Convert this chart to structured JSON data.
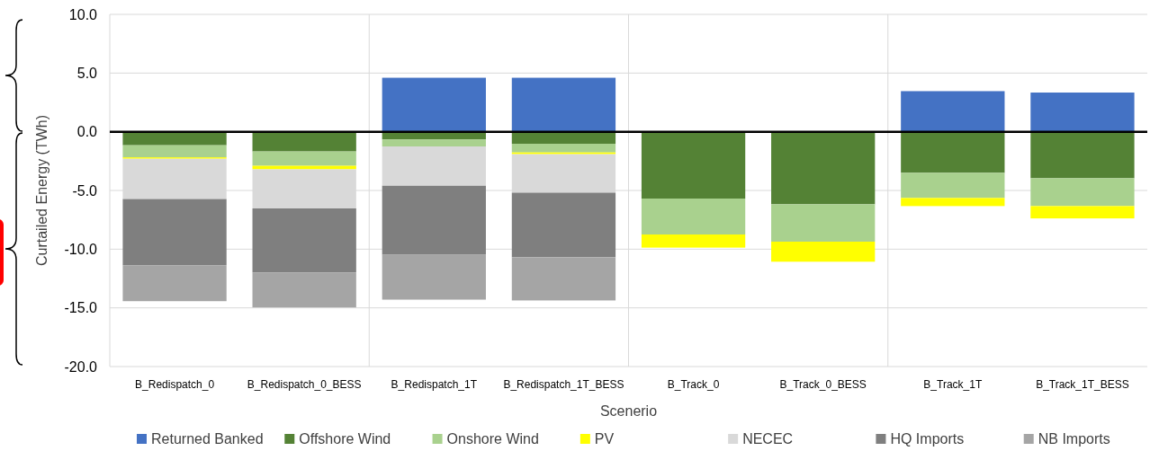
{
  "chart_data": {
    "type": "bar",
    "stacked": true,
    "xlabel": "Scenerio",
    "ylabel": "Curtailed Energy (TWh)",
    "categories": [
      "B_Redispatch_0",
      "B_Redispatch_0_BESS",
      "B_Redispatch_1T",
      "B_Redispatch_1T_BESS",
      "B_Track_0",
      "B_Track_0_BESS",
      "B_Track_1T",
      "B_Track_1T_BESS"
    ],
    "series": [
      {
        "name": "Returned Banked",
        "color": "#4472c4",
        "values": [
          0,
          0,
          4.6,
          4.6,
          0,
          0,
          3.46,
          3.34
        ]
      },
      {
        "name": "Offshore Wind",
        "color": "#548235",
        "values": [
          -1.15,
          -1.68,
          -0.66,
          -1.02,
          -5.69,
          -6.18,
          -3.5,
          -3.96
        ]
      },
      {
        "name": "Onshore Wind",
        "color": "#a9d18e",
        "values": [
          -1.03,
          -1.22,
          -0.59,
          -0.74,
          -3.06,
          -3.18,
          -2.14,
          -2.37
        ]
      },
      {
        "name": "PV",
        "color": "#ffff00",
        "values": [
          -0.12,
          -0.3,
          0,
          -0.15,
          -1.12,
          -1.71,
          -0.69,
          -1.05
        ]
      },
      {
        "name": "NECEC",
        "color": "#d9d9d9",
        "values": [
          -3.43,
          -3.33,
          -3.35,
          -3.28,
          0,
          0,
          0,
          0
        ]
      },
      {
        "name": "HQ Imports",
        "color": "#7f7f7f",
        "values": [
          -5.64,
          -5.45,
          -5.88,
          -5.5,
          0,
          0,
          0,
          0
        ]
      },
      {
        "name": "NB Imports",
        "color": "#a5a5a5",
        "values": [
          -3.06,
          -2.98,
          -3.82,
          -3.68,
          0,
          0,
          0,
          0
        ]
      }
    ],
    "ylim": [
      -20,
      10
    ],
    "yticks": [
      {
        "value": -20,
        "label": "-20.0"
      },
      {
        "value": -15,
        "label": "-15.0"
      },
      {
        "value": -10,
        "label": "-10.0"
      },
      {
        "value": -5,
        "label": "-5.0"
      },
      {
        "value": 0,
        "label": "0.0"
      },
      {
        "value": 5,
        "label": "5.0"
      },
      {
        "value": 10,
        "label": "10.0"
      }
    ],
    "grid": "y",
    "legend": "bottom"
  }
}
